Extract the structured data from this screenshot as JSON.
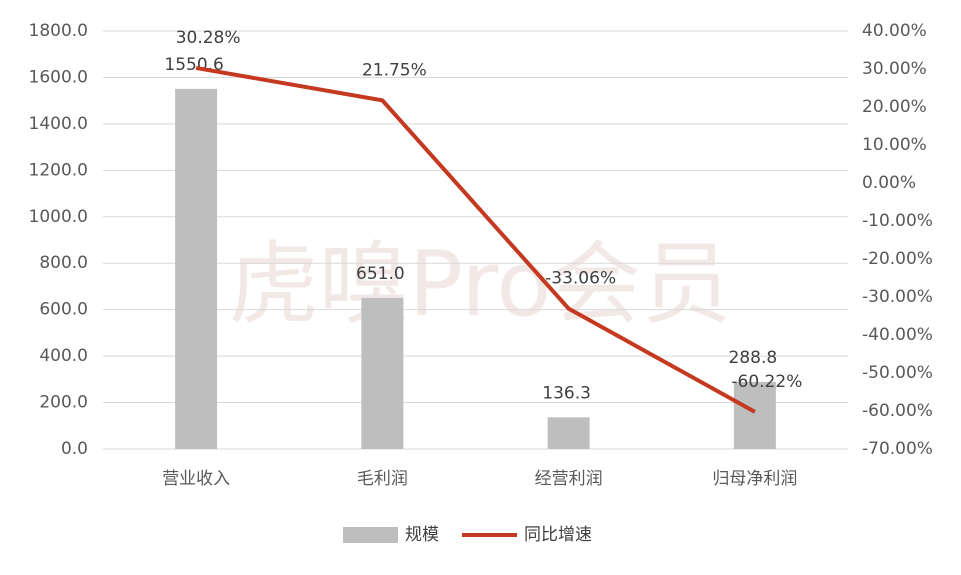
{
  "chart_data": {
    "type": "bar-line",
    "watermark": "虎嗅Pro会员",
    "categories": [
      "营业收入",
      "毛利润",
      "经营利润",
      "归母净利润"
    ],
    "series": [
      {
        "name": "规模",
        "type": "bar",
        "color": "#bfbebf",
        "values": [
          1550.6,
          651.0,
          136.3,
          288.8
        ],
        "value_labels": [
          "1550.6",
          "651.0",
          "136.3",
          "288.8"
        ]
      },
      {
        "name": "同比增速",
        "type": "line",
        "axis": "y2",
        "color": "#c4391f",
        "values": [
          30.28,
          21.75,
          -33.06,
          -60.22
        ],
        "value_labels": [
          "30.28%",
          "21.75%",
          "-33.06%",
          "-60.22%"
        ]
      }
    ],
    "ylim": [
      0,
      1800
    ],
    "yticks": [
      {
        "value": 0,
        "label": "0.0"
      },
      {
        "value": 200,
        "label": "200.0"
      },
      {
        "value": 400,
        "label": "400.0"
      },
      {
        "value": 600,
        "label": "600.0"
      },
      {
        "value": 800,
        "label": "800.0"
      },
      {
        "value": 1000,
        "label": "1000.0"
      },
      {
        "value": 1200,
        "label": "1200.0"
      },
      {
        "value": 1400,
        "label": "1400.0"
      },
      {
        "value": 1600,
        "label": "1600.0"
      },
      {
        "value": 1800,
        "label": "1800.0"
      }
    ],
    "y2lim": [
      -70,
      40
    ],
    "y2ticks": [
      {
        "value": 40,
        "label": "40.00%"
      },
      {
        "value": 30,
        "label": "30.00%"
      },
      {
        "value": 20,
        "label": "20.00%"
      },
      {
        "value": 10,
        "label": "10.00%"
      },
      {
        "value": 0,
        "label": "0.00%"
      },
      {
        "value": -10,
        "label": "-10.00%"
      },
      {
        "value": -20,
        "label": "-20.00%"
      },
      {
        "value": -30,
        "label": "-30.00%"
      },
      {
        "value": -40,
        "label": "-40.00%"
      },
      {
        "value": -50,
        "label": "-50.00%"
      },
      {
        "value": -60,
        "label": "-60.00%"
      },
      {
        "value": -70,
        "label": "-70.00%"
      }
    ],
    "grid": true,
    "legend": "bottom"
  }
}
